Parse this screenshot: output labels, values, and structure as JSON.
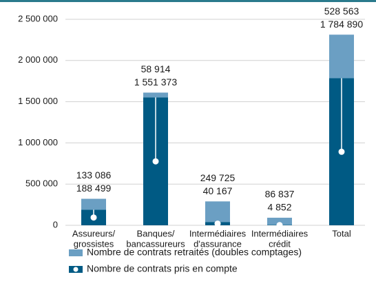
{
  "chart_data": {
    "type": "stacked_bar",
    "categories": [
      [
        "Assureurs/",
        "grossistes"
      ],
      [
        "Banques/",
        "bancassureurs"
      ],
      [
        "Intermédiaires",
        "d'assurance"
      ],
      [
        "Intermédiaires",
        "crédit"
      ],
      [
        "Total"
      ]
    ],
    "series": [
      {
        "name": "Nombre de contrats pris en compte",
        "color": "#005a84",
        "values": [
          188499,
          1551373,
          40167,
          4852,
          1784890
        ],
        "value_labels": [
          "188 499",
          "1 551 373",
          "40 167",
          "4 852",
          "1 784 890"
        ]
      },
      {
        "name": "Nombre de contrats retraités (doubles comptages)",
        "color": "#6b9fc3",
        "values": [
          133086,
          58914,
          249725,
          86837,
          528563
        ],
        "value_labels": [
          "133 086",
          "58 914",
          "249 725",
          "86 837",
          "528 563"
        ]
      }
    ],
    "ylim": [
      0,
      2500000
    ],
    "yticks": [
      0,
      {
        "value": 500000,
        "label": "500 000"
      },
      {
        "value": 1000000,
        "label": "1 000 000"
      },
      {
        "value": 1500000,
        "label": "1 500 000"
      },
      {
        "value": 2000000,
        "label": "2 000 000"
      },
      {
        "value": 2500000,
        "label": "2 500 000"
      }
    ],
    "grid": true
  }
}
